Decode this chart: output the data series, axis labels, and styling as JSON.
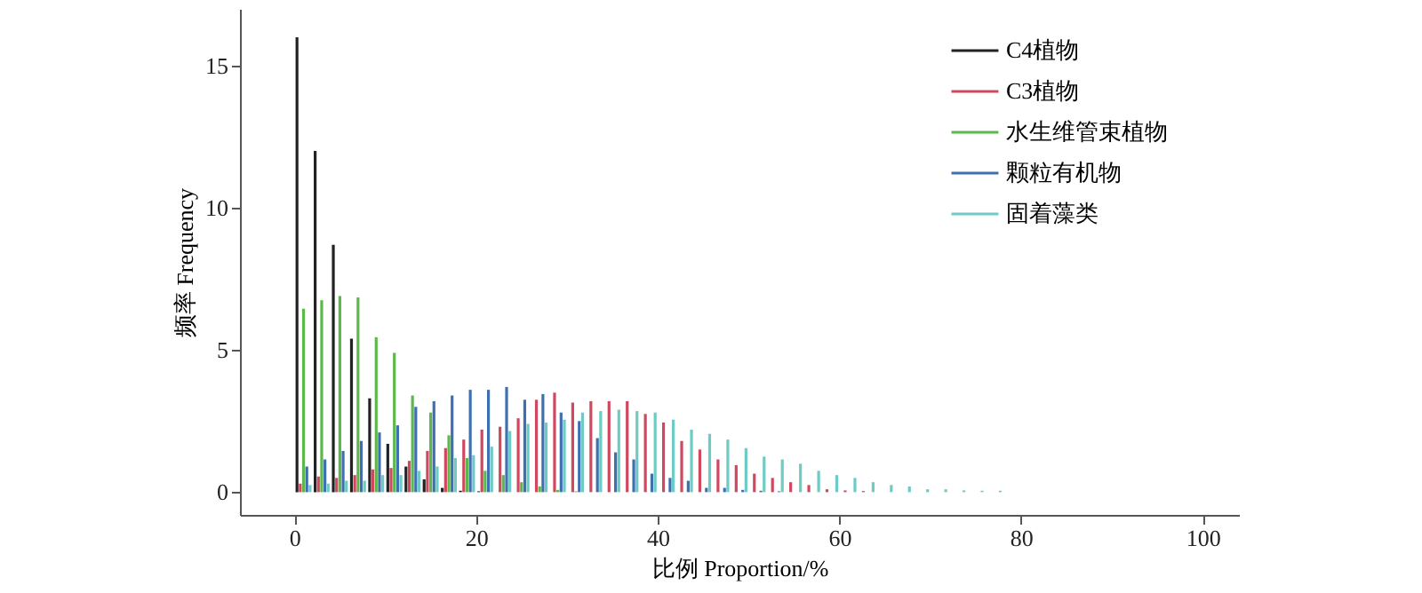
{
  "chart_data": {
    "type": "bar",
    "xlabel": "比例 Proportion/%",
    "ylabel": "频率 Frequency",
    "x": [
      1,
      3,
      5,
      7,
      9,
      11,
      13,
      15,
      17,
      19,
      21,
      23,
      25,
      27,
      29,
      31,
      33,
      35,
      37,
      39,
      41,
      43,
      45,
      47,
      49,
      51,
      53,
      55,
      57,
      59,
      61,
      63,
      65,
      67,
      69,
      71,
      73,
      75,
      77
    ],
    "series": [
      {
        "name": "C4植物",
        "color": "#222222",
        "values": [
          16.0,
          12.0,
          8.7,
          5.4,
          3.3,
          1.7,
          0.9,
          0.45,
          0.15,
          0.05,
          0.03,
          null,
          null,
          null,
          null,
          null,
          null,
          null,
          null,
          null,
          null,
          null,
          null,
          null,
          null,
          null,
          null,
          null,
          null,
          null,
          null,
          null,
          null,
          null,
          null,
          null,
          null,
          null,
          null
        ]
      },
      {
        "name": "C3植物",
        "color": "#d0485f",
        "values": [
          0.3,
          0.55,
          0.5,
          0.6,
          0.8,
          0.85,
          1.1,
          1.45,
          1.55,
          1.85,
          2.2,
          2.3,
          2.6,
          3.25,
          3.5,
          3.15,
          3.2,
          3.2,
          3.2,
          2.75,
          2.45,
          1.8,
          1.5,
          1.15,
          0.95,
          0.65,
          0.5,
          0.35,
          0.25,
          0.1,
          0.06,
          0.04,
          null,
          null,
          null,
          null,
          null,
          null,
          null
        ]
      },
      {
        "name": "水生维管束植物",
        "color": "#5cb84a",
        "values": [
          6.45,
          6.75,
          6.9,
          6.85,
          5.45,
          4.9,
          3.4,
          2.8,
          2.0,
          1.2,
          0.75,
          0.6,
          0.35,
          0.2,
          0.08,
          0.03,
          null,
          null,
          null,
          null,
          null,
          null,
          null,
          null,
          null,
          null,
          null,
          null,
          null,
          null,
          null,
          null,
          null,
          null,
          null,
          null,
          null,
          null,
          null
        ]
      },
      {
        "name": "颗粒有机物",
        "color": "#3e6fb0",
        "values": [
          0.9,
          1.15,
          1.45,
          1.8,
          2.1,
          2.35,
          3.0,
          3.2,
          3.4,
          3.6,
          3.6,
          3.7,
          3.25,
          3.45,
          2.8,
          2.5,
          1.9,
          1.4,
          1.15,
          0.65,
          0.5,
          0.4,
          0.15,
          0.15,
          0.08,
          0.05,
          0.03,
          null,
          null,
          null,
          null,
          null,
          null,
          null,
          null,
          null,
          null,
          null,
          null
        ]
      },
      {
        "name": "固着藻类",
        "color": "#6ccbc4",
        "values": [
          0.25,
          0.3,
          0.4,
          0.4,
          0.6,
          0.6,
          0.75,
          0.9,
          1.2,
          1.3,
          1.6,
          2.15,
          2.4,
          2.45,
          2.55,
          2.8,
          2.85,
          2.9,
          2.85,
          2.8,
          2.55,
          2.2,
          2.05,
          1.85,
          1.55,
          1.25,
          1.15,
          1.0,
          0.75,
          0.6,
          0.5,
          0.35,
          0.25,
          0.2,
          0.1,
          0.1,
          0.06,
          0.05,
          0.05
        ]
      }
    ],
    "xlim": [
      -6,
      104
    ],
    "xticks": [
      0,
      20,
      40,
      60,
      80,
      100
    ],
    "ylim": [
      -0.8,
      17
    ],
    "yticks": [
      0,
      5,
      10,
      15
    ],
    "grid": false,
    "legend": "top right"
  }
}
